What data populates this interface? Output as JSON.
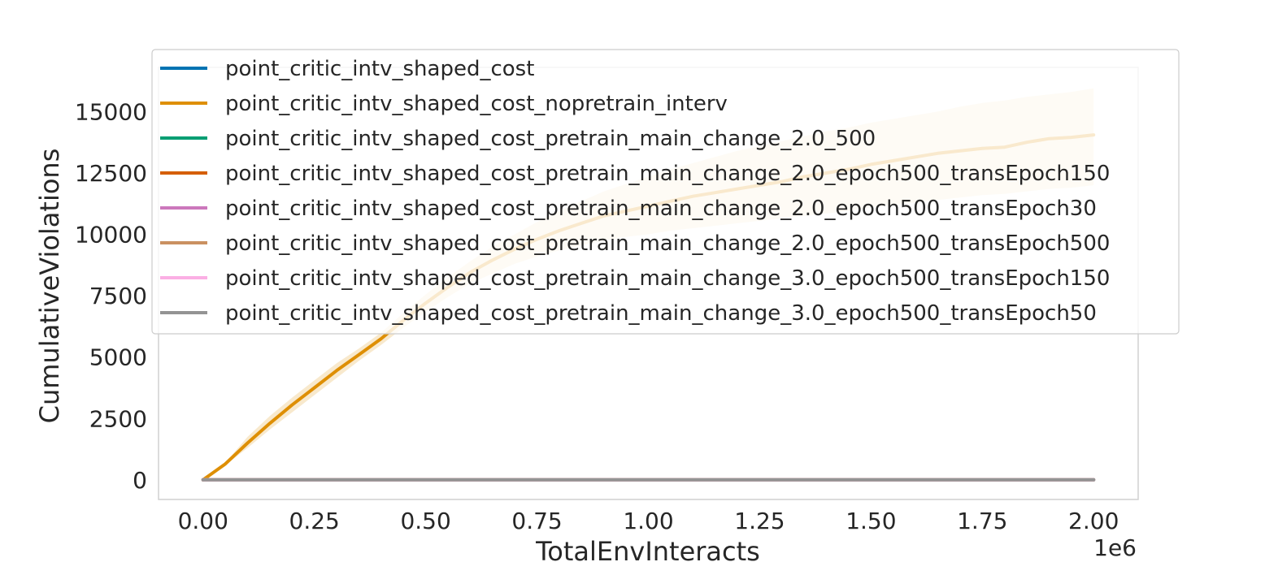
{
  "chart_data": {
    "type": "line",
    "xlabel": "TotalEnvInteracts",
    "ylabel": "CumulativeViolations",
    "x_offset_label": "1e6",
    "xlim": [
      -100000,
      2100000
    ],
    "ylim": [
      -800,
      16800
    ],
    "x_ticks": [
      0,
      250000,
      500000,
      750000,
      1000000,
      1250000,
      1500000,
      1750000,
      2000000
    ],
    "x_tick_labels": [
      "0.00",
      "0.25",
      "0.50",
      "0.75",
      "1.00",
      "1.25",
      "1.50",
      "1.75",
      "2.00"
    ],
    "y_ticks": [
      0,
      2500,
      5000,
      7500,
      10000,
      12500,
      15000
    ],
    "y_tick_labels": [
      "0",
      "2500",
      "5000",
      "7500",
      "10000",
      "12500",
      "15000"
    ],
    "grid": false,
    "legend_position": "top-right",
    "x": [
      0,
      50000,
      100000,
      150000,
      200000,
      250000,
      300000,
      350000,
      400000,
      450000,
      500000,
      550000,
      600000,
      650000,
      700000,
      750000,
      800000,
      850000,
      900000,
      950000,
      1000000,
      1050000,
      1100000,
      1150000,
      1200000,
      1250000,
      1300000,
      1350000,
      1400000,
      1450000,
      1500000,
      1550000,
      1600000,
      1650000,
      1700000,
      1750000,
      1800000,
      1850000,
      1900000,
      1950000,
      2000000
    ],
    "series": [
      {
        "name": "point_critic_intv_shaped_cost",
        "color": "#0173b2",
        "values": [
          0,
          0,
          0,
          0,
          0,
          0,
          0,
          0,
          0,
          0,
          0,
          0,
          0,
          0,
          0,
          0,
          0,
          0,
          0,
          0,
          0,
          0,
          0,
          0,
          0,
          0,
          0,
          0,
          0,
          0,
          0,
          0,
          0,
          0,
          0,
          0,
          0,
          0,
          0,
          0,
          0
        ]
      },
      {
        "name": "point_critic_intv_shaped_cost_nopretrain_interv",
        "color": "#de8f05",
        "values": [
          0,
          650,
          1500,
          2300,
          3050,
          3750,
          4450,
          5100,
          5750,
          6500,
          7200,
          7850,
          8450,
          8950,
          9400,
          9800,
          10150,
          10450,
          10750,
          10950,
          11150,
          11350,
          11550,
          11700,
          11850,
          12000,
          12150,
          12350,
          12500,
          12650,
          12850,
          13000,
          13150,
          13300,
          13400,
          13500,
          13550,
          13750,
          13900,
          13950,
          14050
        ],
        "band_upper": [
          0,
          700,
          1750,
          2600,
          3350,
          4050,
          4750,
          5350,
          6000,
          6800,
          7550,
          8250,
          8900,
          9500,
          10000,
          10500,
          10950,
          11350,
          11750,
          12050,
          12350,
          12650,
          12900,
          13150,
          13400,
          13600,
          13800,
          14000,
          14200,
          14350,
          14550,
          14700,
          14850,
          15000,
          15200,
          15350,
          15450,
          15600,
          15700,
          15800,
          15950
        ],
        "band_lower": [
          0,
          600,
          1300,
          2050,
          2750,
          3450,
          4150,
          4850,
          5500,
          6200,
          6850,
          7450,
          8000,
          8400,
          8800,
          9100,
          9350,
          9550,
          9750,
          9900,
          10000,
          10150,
          10250,
          10350,
          10450,
          10550,
          10650,
          10750,
          10850,
          10950,
          11100,
          11200,
          11300,
          11400,
          11500,
          11600,
          11650,
          11750,
          11850,
          11900,
          12000
        ]
      },
      {
        "name": "point_critic_intv_shaped_cost_pretrain_main_change_2.0_500",
        "color": "#029e73",
        "values": [
          0,
          0,
          0,
          0,
          0,
          0,
          0,
          0,
          0,
          0,
          0,
          0,
          0,
          0,
          0,
          0,
          0,
          0,
          0,
          0,
          0,
          0,
          0,
          0,
          0,
          0,
          0,
          0,
          0,
          0,
          0,
          0,
          0,
          0,
          0,
          0,
          0,
          0,
          0,
          0,
          0
        ]
      },
      {
        "name": "point_critic_intv_shaped_cost_pretrain_main_change_2.0_epoch500_transEpoch150",
        "color": "#d55e00",
        "values": [
          0,
          0,
          0,
          0,
          0,
          0,
          0,
          0,
          0,
          0,
          0,
          0,
          0,
          0,
          0,
          0,
          0,
          0,
          0,
          0,
          0,
          0,
          0,
          0,
          0,
          0,
          0,
          0,
          0,
          0,
          0,
          0,
          0,
          0,
          0,
          0,
          0,
          0,
          0,
          0,
          0
        ]
      },
      {
        "name": "point_critic_intv_shaped_cost_pretrain_main_change_2.0_epoch500_transEpoch30",
        "color": "#cc78bc",
        "values": [
          0,
          0,
          0,
          0,
          0,
          0,
          0,
          0,
          0,
          0,
          0,
          0,
          0,
          0,
          0,
          0,
          0,
          0,
          0,
          0,
          0,
          0,
          0,
          0,
          0,
          0,
          0,
          0,
          0,
          0,
          0,
          0,
          0,
          0,
          0,
          0,
          0,
          0,
          0,
          0,
          0
        ]
      },
      {
        "name": "point_critic_intv_shaped_cost_pretrain_main_change_2.0_epoch500_transEpoch500",
        "color": "#ca9161",
        "values": [
          0,
          0,
          0,
          0,
          0,
          0,
          0,
          0,
          0,
          0,
          0,
          0,
          0,
          0,
          0,
          0,
          0,
          0,
          0,
          0,
          0,
          0,
          0,
          0,
          0,
          0,
          0,
          0,
          0,
          0,
          0,
          0,
          0,
          0,
          0,
          0,
          0,
          0,
          0,
          0,
          0
        ]
      },
      {
        "name": "point_critic_intv_shaped_cost_pretrain_main_change_3.0_epoch500_transEpoch150",
        "color": "#fbafe4",
        "values": [
          0,
          0,
          0,
          0,
          0,
          0,
          0,
          0,
          0,
          0,
          0,
          0,
          0,
          0,
          0,
          0,
          0,
          0,
          0,
          0,
          0,
          0,
          0,
          0,
          0,
          0,
          0,
          0,
          0,
          0,
          0,
          0,
          0,
          0,
          0,
          0,
          0,
          0,
          0,
          0,
          0
        ]
      },
      {
        "name": "point_critic_intv_shaped_cost_pretrain_main_change_3.0_epoch500_transEpoch50",
        "color": "#949494",
        "values": [
          0,
          0,
          0,
          0,
          0,
          0,
          0,
          0,
          0,
          0,
          0,
          0,
          0,
          0,
          0,
          0,
          0,
          0,
          0,
          0,
          0,
          0,
          0,
          0,
          0,
          0,
          0,
          0,
          0,
          0,
          0,
          0,
          0,
          0,
          0,
          0,
          0,
          0,
          0,
          0,
          0
        ]
      }
    ]
  }
}
